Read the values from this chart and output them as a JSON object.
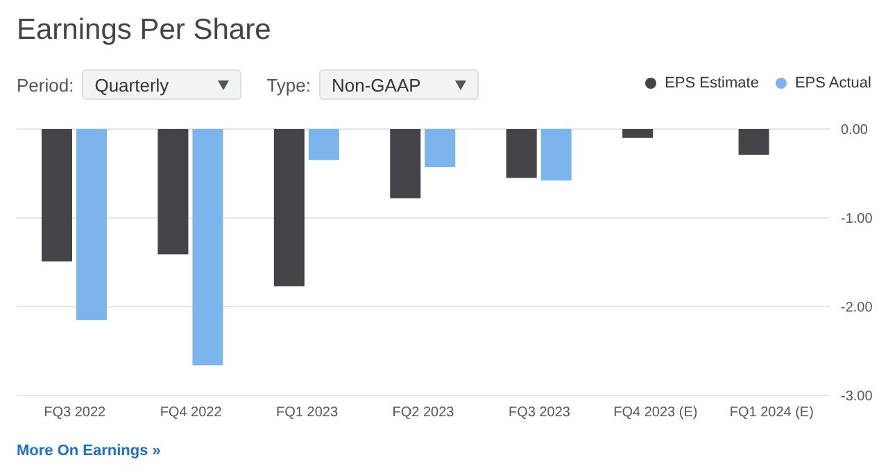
{
  "chart_data": {
    "type": "bar",
    "title": "Earnings Per Share",
    "categories": [
      "FQ3 2022",
      "FQ4 2022",
      "FQ1 2023",
      "FQ2 2023",
      "FQ3 2023",
      "FQ4 2023 (E)",
      "FQ1 2024 (E)"
    ],
    "series": [
      {
        "name": "EPS Estimate",
        "color": "#434348",
        "values": [
          -1.49,
          -1.41,
          -1.77,
          -0.78,
          -0.55,
          -0.1,
          -0.29
        ]
      },
      {
        "name": "EPS Actual",
        "color": "#7cb5ec",
        "values": [
          -2.15,
          -2.66,
          -0.35,
          -0.43,
          -0.58,
          null,
          null
        ]
      }
    ],
    "ylim": [
      -3,
      0
    ],
    "yticks": [
      {
        "value": 0,
        "label": "0.00"
      },
      {
        "value": -1,
        "label": "-1.00"
      },
      {
        "value": -2,
        "label": "-2.00"
      },
      {
        "value": -3,
        "label": "-3.00"
      }
    ],
    "grid": "y",
    "legend": "top right",
    "annotations": [
      "Period:",
      "Quarterly",
      "Type:",
      "Non-GAAP",
      "More On Earnings »"
    ]
  }
}
